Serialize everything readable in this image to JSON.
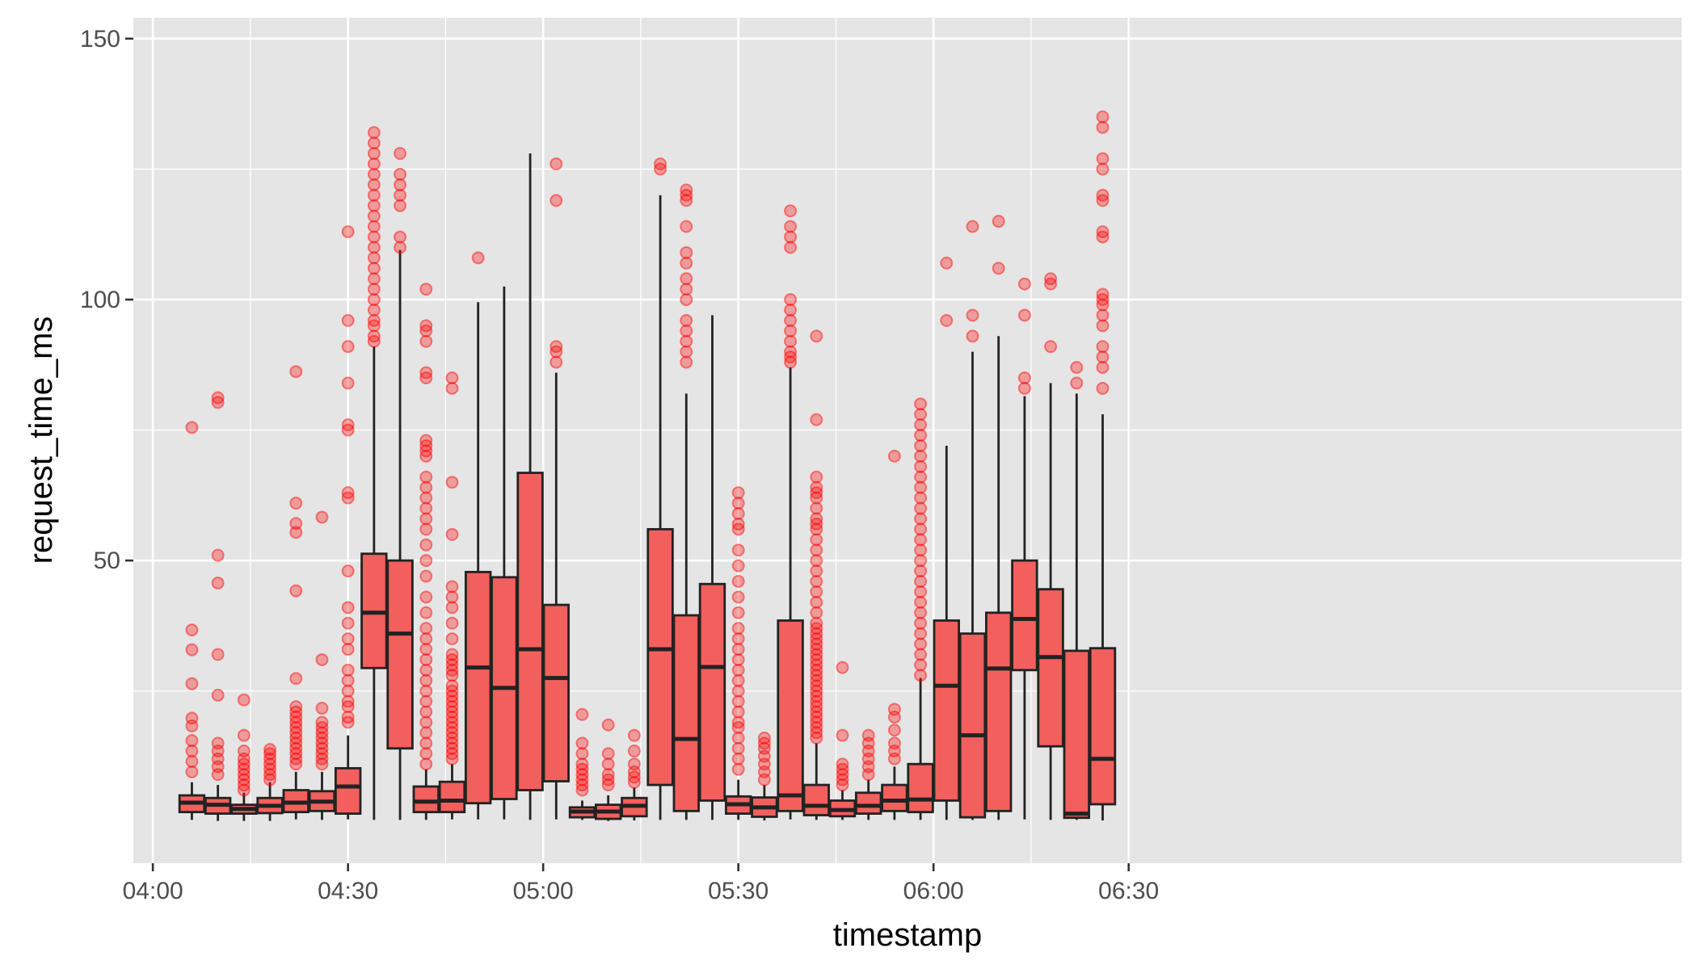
{
  "chart_data": {
    "type": "box",
    "xlabel": "timestamp",
    "ylabel": "request_time_ms",
    "x_unit": "minutes after 04:00",
    "xlim": [
      -3,
      235
    ],
    "ylim": [
      -8,
      154
    ],
    "x_ticks": [
      {
        "value": 0,
        "label": "04:00"
      },
      {
        "value": 30,
        "label": "04:30"
      },
      {
        "value": 60,
        "label": "05:00"
      },
      {
        "value": 90,
        "label": "05:30"
      },
      {
        "value": 120,
        "label": "06:00"
      },
      {
        "value": 150,
        "label": "06:30"
      }
    ],
    "y_ticks": [
      {
        "value": 50,
        "label": "50"
      },
      {
        "value": 100,
        "label": "100"
      },
      {
        "value": 150,
        "label": "150"
      }
    ],
    "x_minor_ticks": [
      15,
      45,
      75,
      105,
      135
    ],
    "y_minor_ticks": [
      25,
      75,
      125
    ],
    "grid": true,
    "colors": {
      "panel": "#e5e5e5",
      "grid": "#ffffff",
      "box_fill": "#f25f5c",
      "box_line": "#222222",
      "outlier": "#ff0000"
    },
    "boxes": [
      {
        "x": 6,
        "q1": 1.8,
        "median": 3.6,
        "q3": 5.0,
        "lower": 0.3,
        "upper": 7.5,
        "outliers": [
          9.5,
          11.5,
          13.5,
          15.5,
          18.3,
          19.8,
          26.4,
          32.9,
          36.7,
          75.5
        ]
      },
      {
        "x": 10,
        "q1": 1.5,
        "median": 3.2,
        "q3": 4.5,
        "lower": 0.1,
        "upper": 7.0,
        "outliers": [
          9.0,
          10.5,
          12.0,
          13.5,
          15.0,
          24.2,
          32.0,
          45.7,
          51.0,
          80.3,
          81.2
        ]
      },
      {
        "x": 14,
        "q1": 1.5,
        "median": 2.4,
        "q3": 3.2,
        "lower": 0.1,
        "upper": 5.5,
        "outliers": [
          6.0,
          7.0,
          8.0,
          9.0,
          10.0,
          11.0,
          12.0,
          13.5,
          16.5,
          23.3
        ]
      },
      {
        "x": 18,
        "q1": 1.6,
        "median": 3.0,
        "q3": 4.5,
        "lower": 0.1,
        "upper": 7.5,
        "outliers": [
          8.0,
          9.0,
          10.0,
          11.0,
          12.0,
          13.0,
          13.8
        ]
      },
      {
        "x": 22,
        "q1": 1.8,
        "median": 3.6,
        "q3": 6.0,
        "lower": 0.4,
        "upper": 9.5,
        "outliers": [
          11.0,
          12.0,
          13.0,
          14.0,
          15.0,
          16.0,
          17.0,
          18.0,
          19.0,
          20.0,
          21.0,
          22.0,
          27.4,
          44.2,
          55.4,
          57.1,
          61.0,
          86.2
        ]
      },
      {
        "x": 26,
        "q1": 2.0,
        "median": 3.8,
        "q3": 5.8,
        "lower": 0.3,
        "upper": 9.5,
        "outliers": [
          11.0,
          12.0,
          13.0,
          14.0,
          15.0,
          16.0,
          17.0,
          18.0,
          19.0,
          21.7,
          31.0,
          58.3
        ]
      },
      {
        "x": 30,
        "q1": 1.5,
        "median": 6.7,
        "q3": 10.2,
        "lower": 0.4,
        "upper": 16.5,
        "outliers": [
          19,
          20,
          22,
          23,
          25,
          27,
          29,
          33,
          35,
          38,
          41,
          48,
          62,
          63,
          75,
          76,
          84,
          91,
          96,
          113
        ]
      },
      {
        "x": 34,
        "q1": 29.4,
        "median": 40.0,
        "q3": 51.3,
        "lower": 0.3,
        "upper": 91.0,
        "outliers": [
          92,
          93,
          95,
          96,
          98,
          100,
          102,
          104,
          106,
          108,
          110,
          112,
          114,
          116,
          118,
          120,
          122,
          124,
          126,
          128,
          130,
          132
        ]
      },
      {
        "x": 38,
        "q1": 14.0,
        "median": 36.0,
        "q3": 50.0,
        "lower": 0.3,
        "upper": 109.5,
        "outliers": [
          110,
          112,
          118,
          120,
          122,
          124,
          128
        ]
      },
      {
        "x": 42,
        "q1": 1.8,
        "median": 3.8,
        "q3": 6.7,
        "lower": 0.3,
        "upper": 10.0,
        "outliers": [
          11,
          13,
          15,
          17,
          19,
          21,
          23,
          25,
          27,
          29,
          31,
          33,
          35,
          37,
          40,
          43,
          47,
          50,
          53,
          56,
          58,
          60,
          62,
          64,
          66,
          70,
          71,
          72,
          73,
          85,
          86,
          92,
          94,
          95,
          102
        ]
      },
      {
        "x": 46,
        "q1": 1.8,
        "median": 4.0,
        "q3": 7.6,
        "lower": 0.4,
        "upper": 11.0,
        "outliers": [
          12,
          13,
          14,
          15,
          16,
          17,
          18,
          19,
          20,
          21,
          22,
          23,
          24,
          25,
          26,
          28,
          29,
          30,
          31,
          32,
          35,
          38,
          41,
          43,
          45,
          55,
          65,
          83,
          85
        ]
      },
      {
        "x": 50,
        "q1": 3.5,
        "median": 29.5,
        "q3": 47.8,
        "lower": 0.4,
        "upper": 99.5,
        "outliers": [
          108
        ]
      },
      {
        "x": 54,
        "q1": 4.3,
        "median": 25.6,
        "q3": 46.8,
        "lower": 0.4,
        "upper": 102.5,
        "outliers": []
      },
      {
        "x": 58,
        "q1": 6.0,
        "median": 33.0,
        "q3": 66.8,
        "lower": 0.3,
        "upper": 128.0,
        "outliers": []
      },
      {
        "x": 62,
        "q1": 7.7,
        "median": 27.5,
        "q3": 41.5,
        "lower": 0.4,
        "upper": 86.0,
        "outliers": [
          88,
          90,
          91,
          119,
          126
        ]
      },
      {
        "x": 66,
        "q1": 0.8,
        "median": 1.9,
        "q3": 2.7,
        "lower": 0.3,
        "upper": 4.0,
        "outliers": [
          6.0,
          7.0,
          8.0,
          9.0,
          10.0,
          11.0,
          13.0,
          15.0,
          20.5
        ]
      },
      {
        "x": 70,
        "q1": 0.5,
        "median": 1.9,
        "q3": 3.2,
        "lower": 0.1,
        "upper": 5.0,
        "outliers": [
          7.0,
          8.0,
          9.0,
          11.0,
          13.0,
          18.5
        ]
      },
      {
        "x": 74,
        "q1": 1.0,
        "median": 3.0,
        "q3": 4.5,
        "lower": 0.2,
        "upper": 6.5,
        "outliers": [
          7.5,
          8.5,
          9.5,
          11.0,
          13.5,
          16.5
        ]
      },
      {
        "x": 78,
        "q1": 7.0,
        "median": 33.0,
        "q3": 56.0,
        "lower": 0.3,
        "upper": 120.0,
        "outliers": [
          125,
          126
        ]
      },
      {
        "x": 82,
        "q1": 2.0,
        "median": 15.8,
        "q3": 39.5,
        "lower": 0.3,
        "upper": 82.0,
        "outliers": [
          88,
          90,
          92,
          94,
          96,
          100,
          102,
          104,
          107,
          109,
          114,
          119,
          120,
          121
        ]
      },
      {
        "x": 86,
        "q1": 4.0,
        "median": 29.6,
        "q3": 45.5,
        "lower": 0.3,
        "upper": 97.0,
        "outliers": []
      },
      {
        "x": 90,
        "q1": 1.5,
        "median": 3.3,
        "q3": 4.8,
        "lower": 0.3,
        "upper": 8.0,
        "outliers": [
          10,
          12,
          14,
          16,
          18,
          19,
          21,
          23,
          25,
          27,
          29,
          31,
          33,
          35,
          37,
          40,
          43,
          46,
          49,
          52,
          56,
          57,
          59,
          61,
          63
        ]
      },
      {
        "x": 94,
        "q1": 0.9,
        "median": 2.7,
        "q3": 4.6,
        "lower": 0.2,
        "upper": 7.0,
        "outliers": [
          8.0,
          9.5,
          11.0,
          12.5,
          14.0,
          15.0,
          16.0
        ]
      },
      {
        "x": 98,
        "q1": 2.0,
        "median": 5.0,
        "q3": 38.5,
        "lower": 0.4,
        "upper": 87.0,
        "outliers": [
          88,
          89,
          90,
          92,
          94,
          96,
          98,
          100,
          110,
          112,
          114,
          117
        ]
      },
      {
        "x": 102,
        "q1": 1.2,
        "median": 3.0,
        "q3": 7.0,
        "lower": 0.3,
        "upper": 15.0,
        "outliers": [
          16,
          17,
          18,
          19,
          20,
          21,
          22,
          23,
          24,
          25,
          26,
          27,
          28,
          29,
          30,
          31,
          32,
          33,
          34,
          35,
          36,
          37,
          38,
          40,
          42,
          44,
          46,
          48,
          50,
          52,
          54,
          56,
          57,
          58,
          60,
          62,
          63,
          64,
          66,
          77,
          93
        ]
      },
      {
        "x": 106,
        "q1": 1.0,
        "median": 2.2,
        "q3": 4.0,
        "lower": 0.3,
        "upper": 6.0,
        "outliers": [
          7.0,
          8.0,
          9.0,
          10.0,
          11.0,
          16.5,
          29.5
        ]
      },
      {
        "x": 110,
        "q1": 1.5,
        "median": 3.0,
        "q3": 5.5,
        "lower": 0.3,
        "upper": 8.0,
        "outliers": [
          9.0,
          10.5,
          12.0,
          13.5,
          15.0,
          16.5
        ]
      },
      {
        "x": 114,
        "q1": 2.0,
        "median": 4.0,
        "q3": 7.0,
        "lower": 0.3,
        "upper": 10.5,
        "outliers": [
          12.0,
          13.5,
          15.0,
          17.5,
          20.0,
          21.5,
          70.0
        ]
      },
      {
        "x": 118,
        "q1": 1.8,
        "median": 4.2,
        "q3": 11.0,
        "lower": 0.3,
        "upper": 27.5,
        "outliers": [
          28,
          30,
          32,
          34,
          36,
          38,
          40,
          42,
          44,
          46,
          48,
          50,
          52,
          54,
          56,
          58,
          60,
          62,
          64,
          66,
          68,
          70,
          72,
          74,
          76,
          78,
          80
        ]
      },
      {
        "x": 122,
        "q1": 4.0,
        "median": 26.0,
        "q3": 38.5,
        "lower": 0.3,
        "upper": 72.0,
        "outliers": [
          96,
          107
        ]
      },
      {
        "x": 126,
        "q1": 0.8,
        "median": 16.5,
        "q3": 36.0,
        "lower": 0.3,
        "upper": 90.0,
        "outliers": [
          93,
          97,
          114
        ]
      },
      {
        "x": 130,
        "q1": 2.0,
        "median": 29.3,
        "q3": 40.0,
        "lower": 0.3,
        "upper": 93.0,
        "outliers": [
          106,
          115
        ]
      },
      {
        "x": 134,
        "q1": 29.0,
        "median": 38.8,
        "q3": 50.0,
        "lower": 0.4,
        "upper": 81.5,
        "outliers": [
          83,
          85,
          97,
          103
        ]
      },
      {
        "x": 138,
        "q1": 14.4,
        "median": 31.5,
        "q3": 44.5,
        "lower": 0.3,
        "upper": 84.0,
        "outliers": [
          91,
          103,
          104
        ]
      },
      {
        "x": 142,
        "q1": 0.7,
        "median": 1.5,
        "q3": 32.7,
        "lower": 0.3,
        "upper": 82.0,
        "outliers": [
          84,
          87
        ]
      },
      {
        "x": 146,
        "q1": 3.3,
        "median": 12.0,
        "q3": 33.2,
        "lower": 0.2,
        "upper": 78.0,
        "outliers": [
          83,
          87,
          89,
          91,
          95,
          97,
          99,
          100,
          101,
          112,
          113,
          119,
          120,
          125,
          127,
          133,
          135
        ]
      }
    ]
  }
}
